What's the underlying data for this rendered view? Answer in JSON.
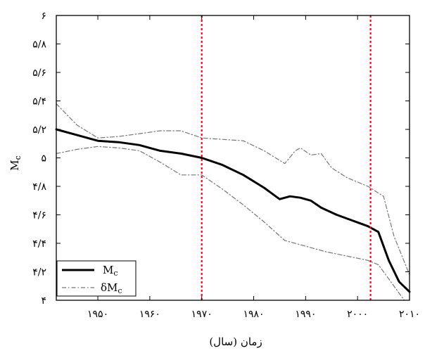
{
  "chart_data": {
    "type": "line",
    "title": "",
    "xlabel": "زمان (سال)",
    "ylabel": "Mc",
    "xlim": [
      1942,
      2010
    ],
    "ylim": [
      4.0,
      6.0
    ],
    "x_ticks": [
      1950,
      1960,
      1970,
      1980,
      1990,
      2000,
      2010
    ],
    "x_tick_labels": [
      "۱۹۵۰",
      "۱۹۶۰",
      "۱۹۷۰",
      "۱۹۸۰",
      "۱۹۹۰",
      "۲۰۰۰",
      "۲۰۱۰"
    ],
    "y_ticks": [
      4.0,
      4.2,
      4.4,
      4.6,
      4.8,
      5.0,
      5.2,
      5.4,
      5.6,
      5.8,
      6.0
    ],
    "y_tick_labels": [
      "۴",
      "۴/۲",
      "۴/۴",
      "۴/۶",
      "۴/۸",
      "۵",
      "۵/۲",
      "۵/۴",
      "۵/۶",
      "۵/۸",
      "۶"
    ],
    "grid": false,
    "legend_position": "bottom-left",
    "vertical_lines": [
      1970,
      2002.5
    ],
    "vertical_line_color": "#e8101a",
    "series": [
      {
        "name": "Mc",
        "style": "solid-thick",
        "color": "#000000",
        "x": [
          1942,
          1946,
          1950,
          1954,
          1958,
          1962,
          1966,
          1970,
          1974,
          1978,
          1982,
          1985,
          1987,
          1989,
          1991,
          1993,
          1996,
          1999,
          2002,
          2004,
          2006,
          2008,
          2010
        ],
        "y": [
          5.2,
          5.16,
          5.12,
          5.11,
          5.09,
          5.05,
          5.03,
          5.0,
          4.95,
          4.88,
          4.79,
          4.71,
          4.73,
          4.72,
          4.7,
          4.65,
          4.6,
          4.56,
          4.52,
          4.48,
          4.28,
          4.13,
          4.06
        ]
      },
      {
        "name": "δMc",
        "style": "dash-dot-upper",
        "color": "#777777",
        "x": [
          1942,
          1946,
          1950,
          1954,
          1958,
          1962,
          1966,
          1970,
          1974,
          1978,
          1982,
          1986,
          1988,
          1989,
          1991,
          1993,
          1995,
          1998,
          2002,
          2005,
          2007,
          2010
        ],
        "y": [
          5.38,
          5.23,
          5.14,
          5.15,
          5.17,
          5.19,
          5.19,
          5.14,
          5.13,
          5.12,
          5.05,
          4.96,
          5.05,
          5.07,
          5.02,
          5.03,
          4.93,
          4.86,
          4.8,
          4.73,
          4.45,
          4.18
        ]
      },
      {
        "name": "δMc-lower",
        "style": "dash-dot-lower",
        "color": "#777777",
        "x": [
          1942,
          1946,
          1950,
          1954,
          1958,
          1962,
          1966,
          1970,
          1974,
          1978,
          1982,
          1986,
          1990,
          1994,
          1998,
          2002,
          2004,
          2006,
          2008,
          2009
        ],
        "y": [
          5.03,
          5.06,
          5.08,
          5.07,
          5.05,
          4.97,
          4.88,
          4.88,
          4.78,
          4.67,
          4.55,
          4.42,
          4.38,
          4.34,
          4.31,
          4.28,
          4.25,
          4.15,
          4.05,
          4.0
        ]
      }
    ],
    "legend": [
      {
        "label_main": "M",
        "label_sub": "c",
        "style": "solid-thick"
      },
      {
        "label_main": "δM",
        "label_sub": "c",
        "style": "dash-dot"
      }
    ]
  }
}
